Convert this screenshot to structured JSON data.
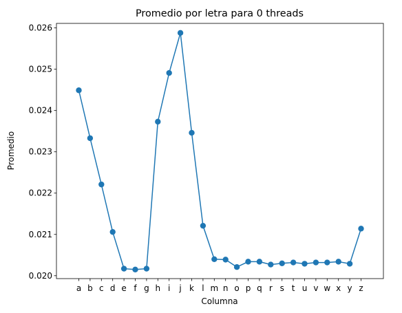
{
  "chart_data": {
    "type": "line",
    "title": "Promedio por letra para 0 threads",
    "xlabel": "Columna",
    "ylabel": "Promedio",
    "categories": [
      "a",
      "b",
      "c",
      "d",
      "e",
      "f",
      "g",
      "h",
      "i",
      "j",
      "k",
      "l",
      "m",
      "n",
      "o",
      "p",
      "q",
      "r",
      "s",
      "t",
      "u",
      "v",
      "w",
      "x",
      "y",
      "z"
    ],
    "series": [
      {
        "values": [
          0.02449,
          0.02333,
          0.02221,
          0.02106,
          0.02017,
          0.02015,
          0.02017,
          0.02373,
          0.02491,
          0.02588,
          0.02346,
          0.02121,
          0.0204,
          0.02039,
          0.02021,
          0.02034,
          0.02034,
          0.02027,
          0.0203,
          0.02032,
          0.02029,
          0.02032,
          0.02032,
          0.02034,
          0.02029,
          0.02114
        ],
        "color": "#1f77b4",
        "marker": "circle"
      }
    ],
    "yticks": [
      "0.020",
      "0.021",
      "0.022",
      "0.023",
      "0.024",
      "0.025",
      "0.026"
    ],
    "ylim": [
      0.01993,
      0.02611
    ],
    "grid": false,
    "legend": "none"
  }
}
